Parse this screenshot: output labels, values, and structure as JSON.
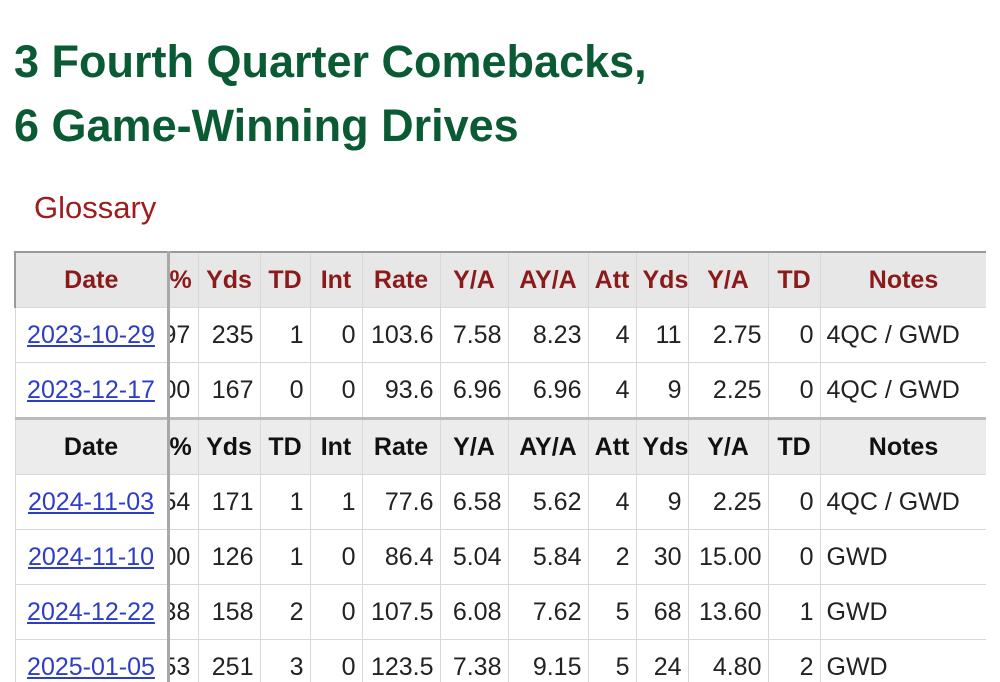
{
  "title": {
    "line1": "3 Fourth Quarter Comebacks,",
    "line2": "6 Game-Winning Drives"
  },
  "glossary_label": "Glossary",
  "columns": [
    "Date",
    "%",
    "Yds",
    "TD",
    "Int",
    "Rate",
    "Y/A",
    "AY/A",
    "Att",
    "Yds",
    "Y/A",
    "TD",
    "Notes"
  ],
  "rows_group1": [
    {
      "date": "2023-10-29",
      "pct": "97",
      "yds": "235",
      "td": "1",
      "int": "0",
      "rate": "103.6",
      "ya": "7.58",
      "ay_a": "8.23",
      "att": "4",
      "ryds": "11",
      "rya": "2.75",
      "rtd": "0",
      "notes": "4QC / GWD"
    },
    {
      "date": "2023-12-17",
      "pct": "00",
      "yds": "167",
      "td": "0",
      "int": "0",
      "rate": "93.6",
      "ya": "6.96",
      "ay_a": "6.96",
      "att": "4",
      "ryds": "9",
      "rya": "2.25",
      "rtd": "0",
      "notes": "4QC / GWD"
    }
  ],
  "rows_group2": [
    {
      "date": "2024-11-03",
      "pct": "54",
      "yds": "171",
      "td": "1",
      "int": "1",
      "rate": "77.6",
      "ya": "6.58",
      "ay_a": "5.62",
      "att": "4",
      "ryds": "9",
      "rya": "2.25",
      "rtd": "0",
      "notes": "4QC / GWD"
    },
    {
      "date": "2024-11-10",
      "pct": "00",
      "yds": "126",
      "td": "1",
      "int": "0",
      "rate": "86.4",
      "ya": "5.04",
      "ay_a": "5.84",
      "att": "2",
      "ryds": "30",
      "rya": "15.00",
      "rtd": "0",
      "notes": "GWD"
    },
    {
      "date": "2024-12-22",
      "pct": "38",
      "yds": "158",
      "td": "2",
      "int": "0",
      "rate": "107.5",
      "ya": "6.08",
      "ay_a": "7.62",
      "att": "5",
      "ryds": "68",
      "rya": "13.60",
      "rtd": "1",
      "notes": "GWD"
    },
    {
      "date": "2025-01-05",
      "pct": "53",
      "yds": "251",
      "td": "3",
      "int": "0",
      "rate": "123.5",
      "ya": "7.38",
      "ay_a": "9.15",
      "att": "5",
      "ryds": "24",
      "rya": "4.80",
      "rtd": "2",
      "notes": "GWD"
    }
  ],
  "colors": {
    "title": "#0a5a34",
    "header_text": "#8b1b1b",
    "link": "#2c3ec7"
  }
}
